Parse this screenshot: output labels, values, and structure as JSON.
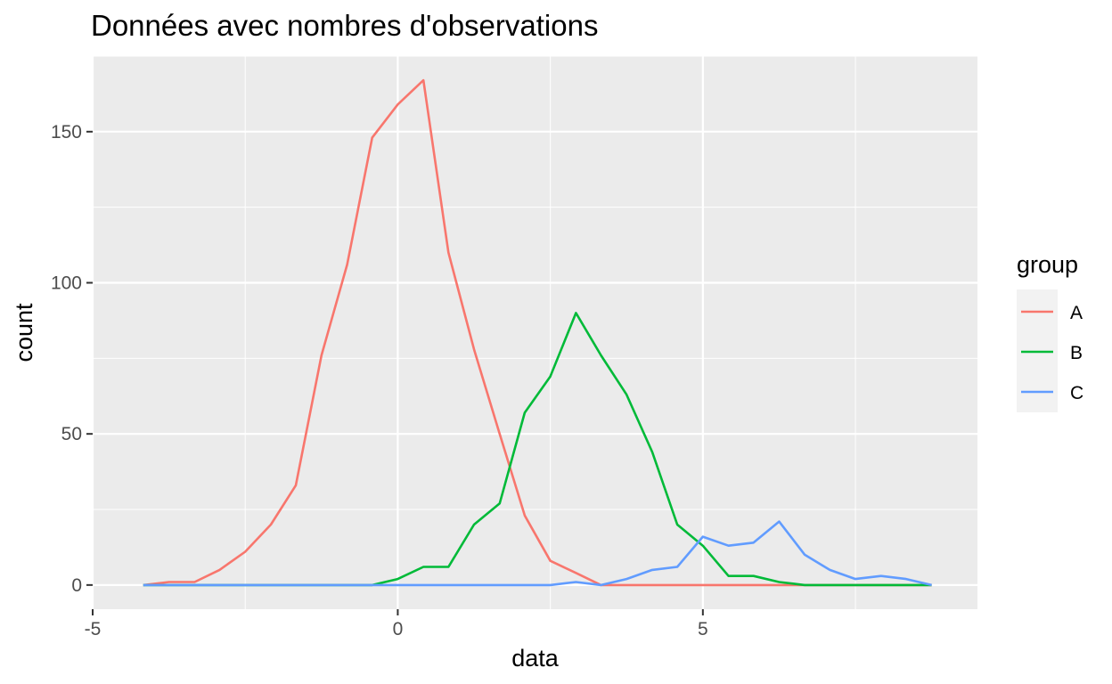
{
  "chart_data": {
    "type": "line",
    "title": "Données avec nombres d'observations",
    "xlabel": "data",
    "ylabel": "count",
    "xlim": [
      -5,
      9.5
    ],
    "ylim": [
      -8,
      175
    ],
    "x_ticks": [
      -5,
      0,
      5
    ],
    "x_tick_labels": [
      "-5",
      "0",
      "5"
    ],
    "y_ticks": [
      0,
      50,
      100,
      150
    ],
    "y_tick_labels": [
      "0",
      "50",
      "100",
      "150"
    ],
    "grid": true,
    "legend": {
      "title": "group",
      "position": "right"
    },
    "series": [
      {
        "name": "A",
        "color": "#F8766D",
        "x": [
          -4.17,
          -3.75,
          -3.33,
          -2.92,
          -2.5,
          -2.08,
          -1.67,
          -1.25,
          -0.83,
          -0.42,
          0.0,
          0.42,
          0.83,
          1.25,
          1.67,
          2.08,
          2.5,
          2.92,
          3.33,
          3.75,
          4.17,
          4.58,
          5.0,
          5.42,
          5.83,
          6.25,
          6.67,
          7.08,
          7.5,
          7.92,
          8.33,
          8.75
        ],
        "values": [
          0,
          1,
          1,
          5,
          11,
          20,
          33,
          76,
          106,
          148,
          159,
          167,
          110,
          78,
          50,
          23,
          8,
          4,
          0,
          0,
          0,
          0,
          0,
          0,
          0,
          0,
          0,
          0,
          0,
          0,
          0,
          0
        ]
      },
      {
        "name": "B",
        "color": "#00BA38",
        "x": [
          -4.17,
          -3.75,
          -3.33,
          -2.92,
          -2.5,
          -2.08,
          -1.67,
          -1.25,
          -0.83,
          -0.42,
          0.0,
          0.42,
          0.83,
          1.25,
          1.67,
          2.08,
          2.5,
          2.92,
          3.33,
          3.75,
          4.17,
          4.58,
          5.0,
          5.42,
          5.83,
          6.25,
          6.67,
          7.08,
          7.5,
          7.92,
          8.33,
          8.75
        ],
        "values": [
          0,
          0,
          0,
          0,
          0,
          0,
          0,
          0,
          0,
          0,
          2,
          6,
          6,
          20,
          27,
          57,
          69,
          90,
          76,
          63,
          44,
          20,
          13,
          3,
          3,
          1,
          0,
          0,
          0,
          0,
          0,
          0
        ]
      },
      {
        "name": "C",
        "color": "#619CFF",
        "x": [
          -4.17,
          -3.75,
          -3.33,
          -2.92,
          -2.5,
          -2.08,
          -1.67,
          -1.25,
          -0.83,
          -0.42,
          0.0,
          0.42,
          0.83,
          1.25,
          1.67,
          2.08,
          2.5,
          2.92,
          3.33,
          3.75,
          4.17,
          4.58,
          5.0,
          5.42,
          5.83,
          6.25,
          6.67,
          7.08,
          7.5,
          7.92,
          8.33,
          8.75
        ],
        "values": [
          0,
          0,
          0,
          0,
          0,
          0,
          0,
          0,
          0,
          0,
          0,
          0,
          0,
          0,
          0,
          0,
          0,
          1,
          0,
          2,
          5,
          6,
          16,
          13,
          14,
          21,
          10,
          5,
          2,
          3,
          2,
          0
        ]
      }
    ]
  }
}
